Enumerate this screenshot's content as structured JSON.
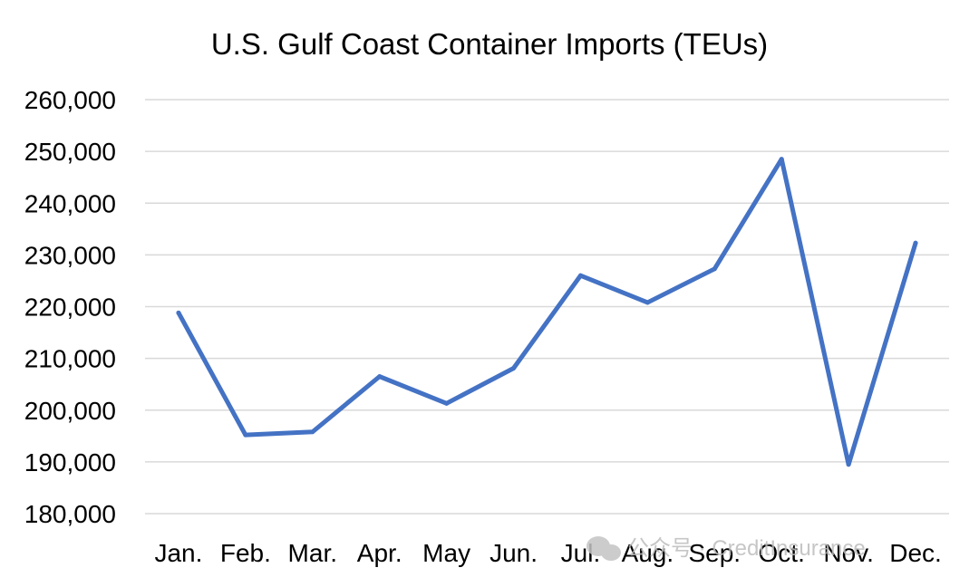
{
  "chart_data": {
    "type": "line",
    "title": "U.S. Gulf Coast Container Imports (TEUs)",
    "categories": [
      "Jan.",
      "Feb.",
      "Mar.",
      "Apr.",
      "May",
      "Jun.",
      "Jul.",
      "Aug.",
      "Sep.",
      "Oct.",
      "Nov.",
      "Dec."
    ],
    "series": [
      {
        "values": [
          218800,
          195200,
          195800,
          206500,
          201300,
          208100,
          226000,
          220800,
          227300,
          248500,
          189500,
          232300
        ]
      }
    ],
    "ylim": [
      180000,
      260000
    ],
    "yticks": [
      180000,
      190000,
      200000,
      210000,
      220000,
      230000,
      240000,
      250000,
      260000
    ],
    "ytick_labels": [
      "180,000",
      "190,000",
      "200,000",
      "210,000",
      "220,000",
      "230,000",
      "240,000",
      "250,000",
      "260,000"
    ],
    "grid": true,
    "legend": "none",
    "line_color": "#4472c4"
  },
  "watermark": {
    "text": "公众号 · CreditInsurance",
    "icon": "wechat-icon"
  }
}
